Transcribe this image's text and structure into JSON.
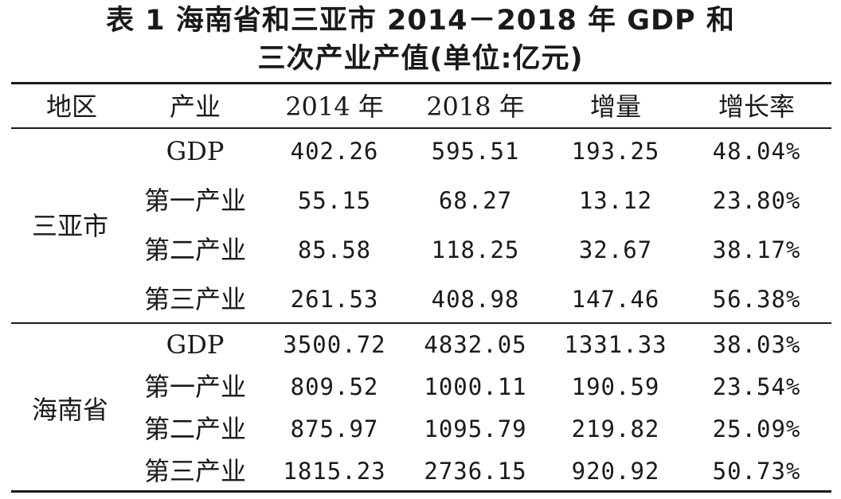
{
  "title": {
    "line1": "表 1   海南省和三亚市 2014－2018 年 GDP 和",
    "line2": "三次产业产值(单位:亿元)"
  },
  "headers": [
    "地区",
    "产业",
    "2014 年",
    "2018 年",
    "增量",
    "增长率"
  ],
  "groups": [
    {
      "region": "三亚市",
      "rows": [
        {
          "industry": "GDP",
          "y2014": "402.26",
          "y2018": "595.51",
          "increase": "193.25",
          "rate": "48.04%"
        },
        {
          "industry": "第一产业",
          "y2014": "55.15",
          "y2018": "68.27",
          "increase": "13.12",
          "rate": "23.80%"
        },
        {
          "industry": "第二产业",
          "y2014": "85.58",
          "y2018": "118.25",
          "increase": "32.67",
          "rate": "38.17%"
        },
        {
          "industry": "第三产业",
          "y2014": "261.53",
          "y2018": "408.98",
          "increase": "147.46",
          "rate": "56.38%"
        }
      ]
    },
    {
      "region": "海南省",
      "rows": [
        {
          "industry": "GDP",
          "y2014": "3500.72",
          "y2018": "4832.05",
          "increase": "1331.33",
          "rate": "38.03%"
        },
        {
          "industry": "第一产业",
          "y2014": "809.52",
          "y2018": "1000.11",
          "increase": "190.59",
          "rate": "23.54%"
        },
        {
          "industry": "第二产业",
          "y2014": "875.97",
          "y2018": "1095.79",
          "increase": "219.82",
          "rate": "25.09%"
        },
        {
          "industry": "第三产业",
          "y2014": "1815.23",
          "y2018": "2736.15",
          "increase": "920.92",
          "rate": "50.73%"
        }
      ]
    }
  ]
}
